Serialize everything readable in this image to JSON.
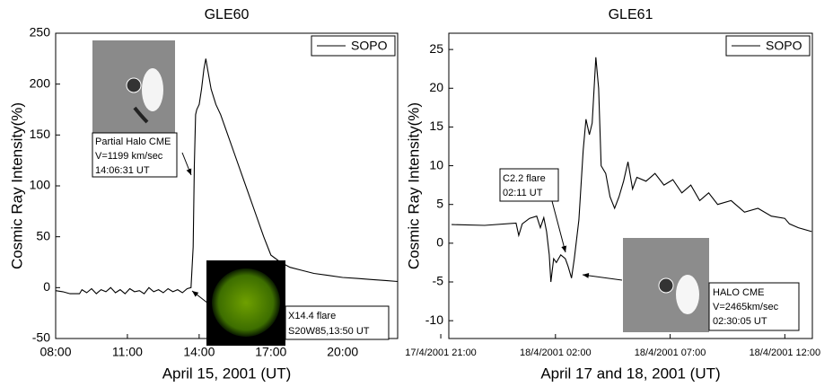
{
  "chart_data": [
    {
      "type": "line",
      "title": "GLE60",
      "x_label": "April 15, 2001 (UT)",
      "y_label": "Cosmic Ray Intensity(%)",
      "xlim": [
        8,
        22.3
      ],
      "ylim": [
        -50,
        250
      ],
      "xticks": [
        {
          "value": 8,
          "label": "08:00"
        },
        {
          "value": 11,
          "label": "11:00"
        },
        {
          "value": 14,
          "label": "14:00"
        },
        {
          "value": 17,
          "label": "17:00"
        },
        {
          "value": 20,
          "label": "20:00"
        }
      ],
      "yticks": [
        -50,
        0,
        50,
        100,
        150,
        200,
        250
      ],
      "x": [
        8.0,
        8.3,
        8.6,
        9.0,
        9.1,
        9.3,
        9.5,
        9.7,
        9.9,
        10.1,
        10.3,
        10.5,
        10.7,
        10.9,
        11.1,
        11.3,
        11.5,
        11.7,
        11.9,
        12.1,
        12.3,
        12.5,
        12.7,
        12.9,
        13.1,
        13.3,
        13.5,
        13.66,
        13.75,
        13.8,
        13.85,
        13.9,
        14.0,
        14.1,
        14.2,
        14.28,
        14.35,
        14.5,
        14.7,
        14.9,
        15.2,
        15.5,
        15.8,
        16.1,
        16.4,
        16.7,
        17.0,
        17.4,
        17.8,
        18.3,
        18.8,
        19.4,
        20.0,
        20.6,
        21.2,
        21.8,
        22.3
      ],
      "series": [
        {
          "name": "SOPO",
          "color": "#000000",
          "values": [
            -3,
            -4,
            -6,
            -6,
            -2,
            -5,
            -1,
            -6,
            -2,
            -4,
            0,
            -5,
            -2,
            -6,
            -1,
            -4,
            -3,
            -6,
            0,
            -4,
            -2,
            -5,
            -1,
            -4,
            -2,
            -5,
            -1,
            0,
            40,
            120,
            170,
            175,
            180,
            195,
            215,
            225,
            215,
            195,
            180,
            170,
            150,
            130,
            110,
            90,
            70,
            50,
            32,
            25,
            20,
            17,
            14,
            12,
            10,
            9,
            8,
            7,
            6
          ]
        }
      ],
      "legend": "upper right",
      "annotations": [
        {
          "lines": [
            "Partial Halo CME",
            "V=1199 km/sec",
            "14:06:31 UT"
          ]
        },
        {
          "lines": [
            "X14.4 flare",
            "S20W85,13:50 UT"
          ]
        }
      ]
    },
    {
      "type": "line",
      "title": "GLE61",
      "x_label": "April 17 and 18, 2001 (UT)",
      "y_label": "Cosmic Ray Intensity(%)",
      "xlim": [
        21.35,
        37.2
      ],
      "ylim": [
        -12.3,
        27.1
      ],
      "xticks": [
        {
          "value": 21,
          "label": "17/4/2001 21:00"
        },
        {
          "value": 26,
          "label": "18/4/2001 02:00"
        },
        {
          "value": 31,
          "label": "18/4/2001 07:00"
        },
        {
          "value": 36,
          "label": "18/4/2001 12:00"
        }
      ],
      "yticks": [
        -10,
        -5,
        0,
        5,
        10,
        15,
        20,
        25
      ],
      "x": [
        21.47,
        22.91,
        24.28,
        24.4,
        24.55,
        24.87,
        25.18,
        25.34,
        25.49,
        25.61,
        25.73,
        25.8,
        25.92,
        26.04,
        26.23,
        26.43,
        26.55,
        26.7,
        26.82,
        27.02,
        27.21,
        27.33,
        27.48,
        27.6,
        27.76,
        27.88,
        27.99,
        28.19,
        28.38,
        28.58,
        28.77,
        28.97,
        29.16,
        29.36,
        29.55,
        29.95,
        30.34,
        30.73,
        31.12,
        31.51,
        31.9,
        32.29,
        32.68,
        33.07,
        33.66,
        34.24,
        34.83,
        35.41,
        36.0,
        36.2,
        36.59,
        37.17
      ],
      "series": [
        {
          "name": "SOPO",
          "color": "#000000",
          "values": [
            2.4,
            2.3,
            2.6,
            1,
            2.5,
            3.2,
            3.5,
            2,
            3.3,
            1.5,
            -1.5,
            -5,
            -2,
            -2.5,
            -1.5,
            -2,
            -3,
            -4.5,
            -2,
            3,
            12,
            16,
            14,
            15.5,
            24,
            20,
            10,
            9,
            6,
            4.5,
            6,
            8,
            10.5,
            7,
            8.5,
            8,
            9,
            7.5,
            8.2,
            6.5,
            7.5,
            5.5,
            6.5,
            5,
            5.5,
            4,
            4.5,
            3.5,
            3.2,
            2.5,
            2,
            1.5
          ]
        }
      ],
      "legend": "upper right",
      "annotations": [
        {
          "lines": [
            "C2.2 flare",
            "02:11 UT"
          ]
        },
        {
          "lines": [
            "HALO CME",
            "V=2465km/sec",
            "02:30:05 UT"
          ]
        }
      ]
    }
  ]
}
